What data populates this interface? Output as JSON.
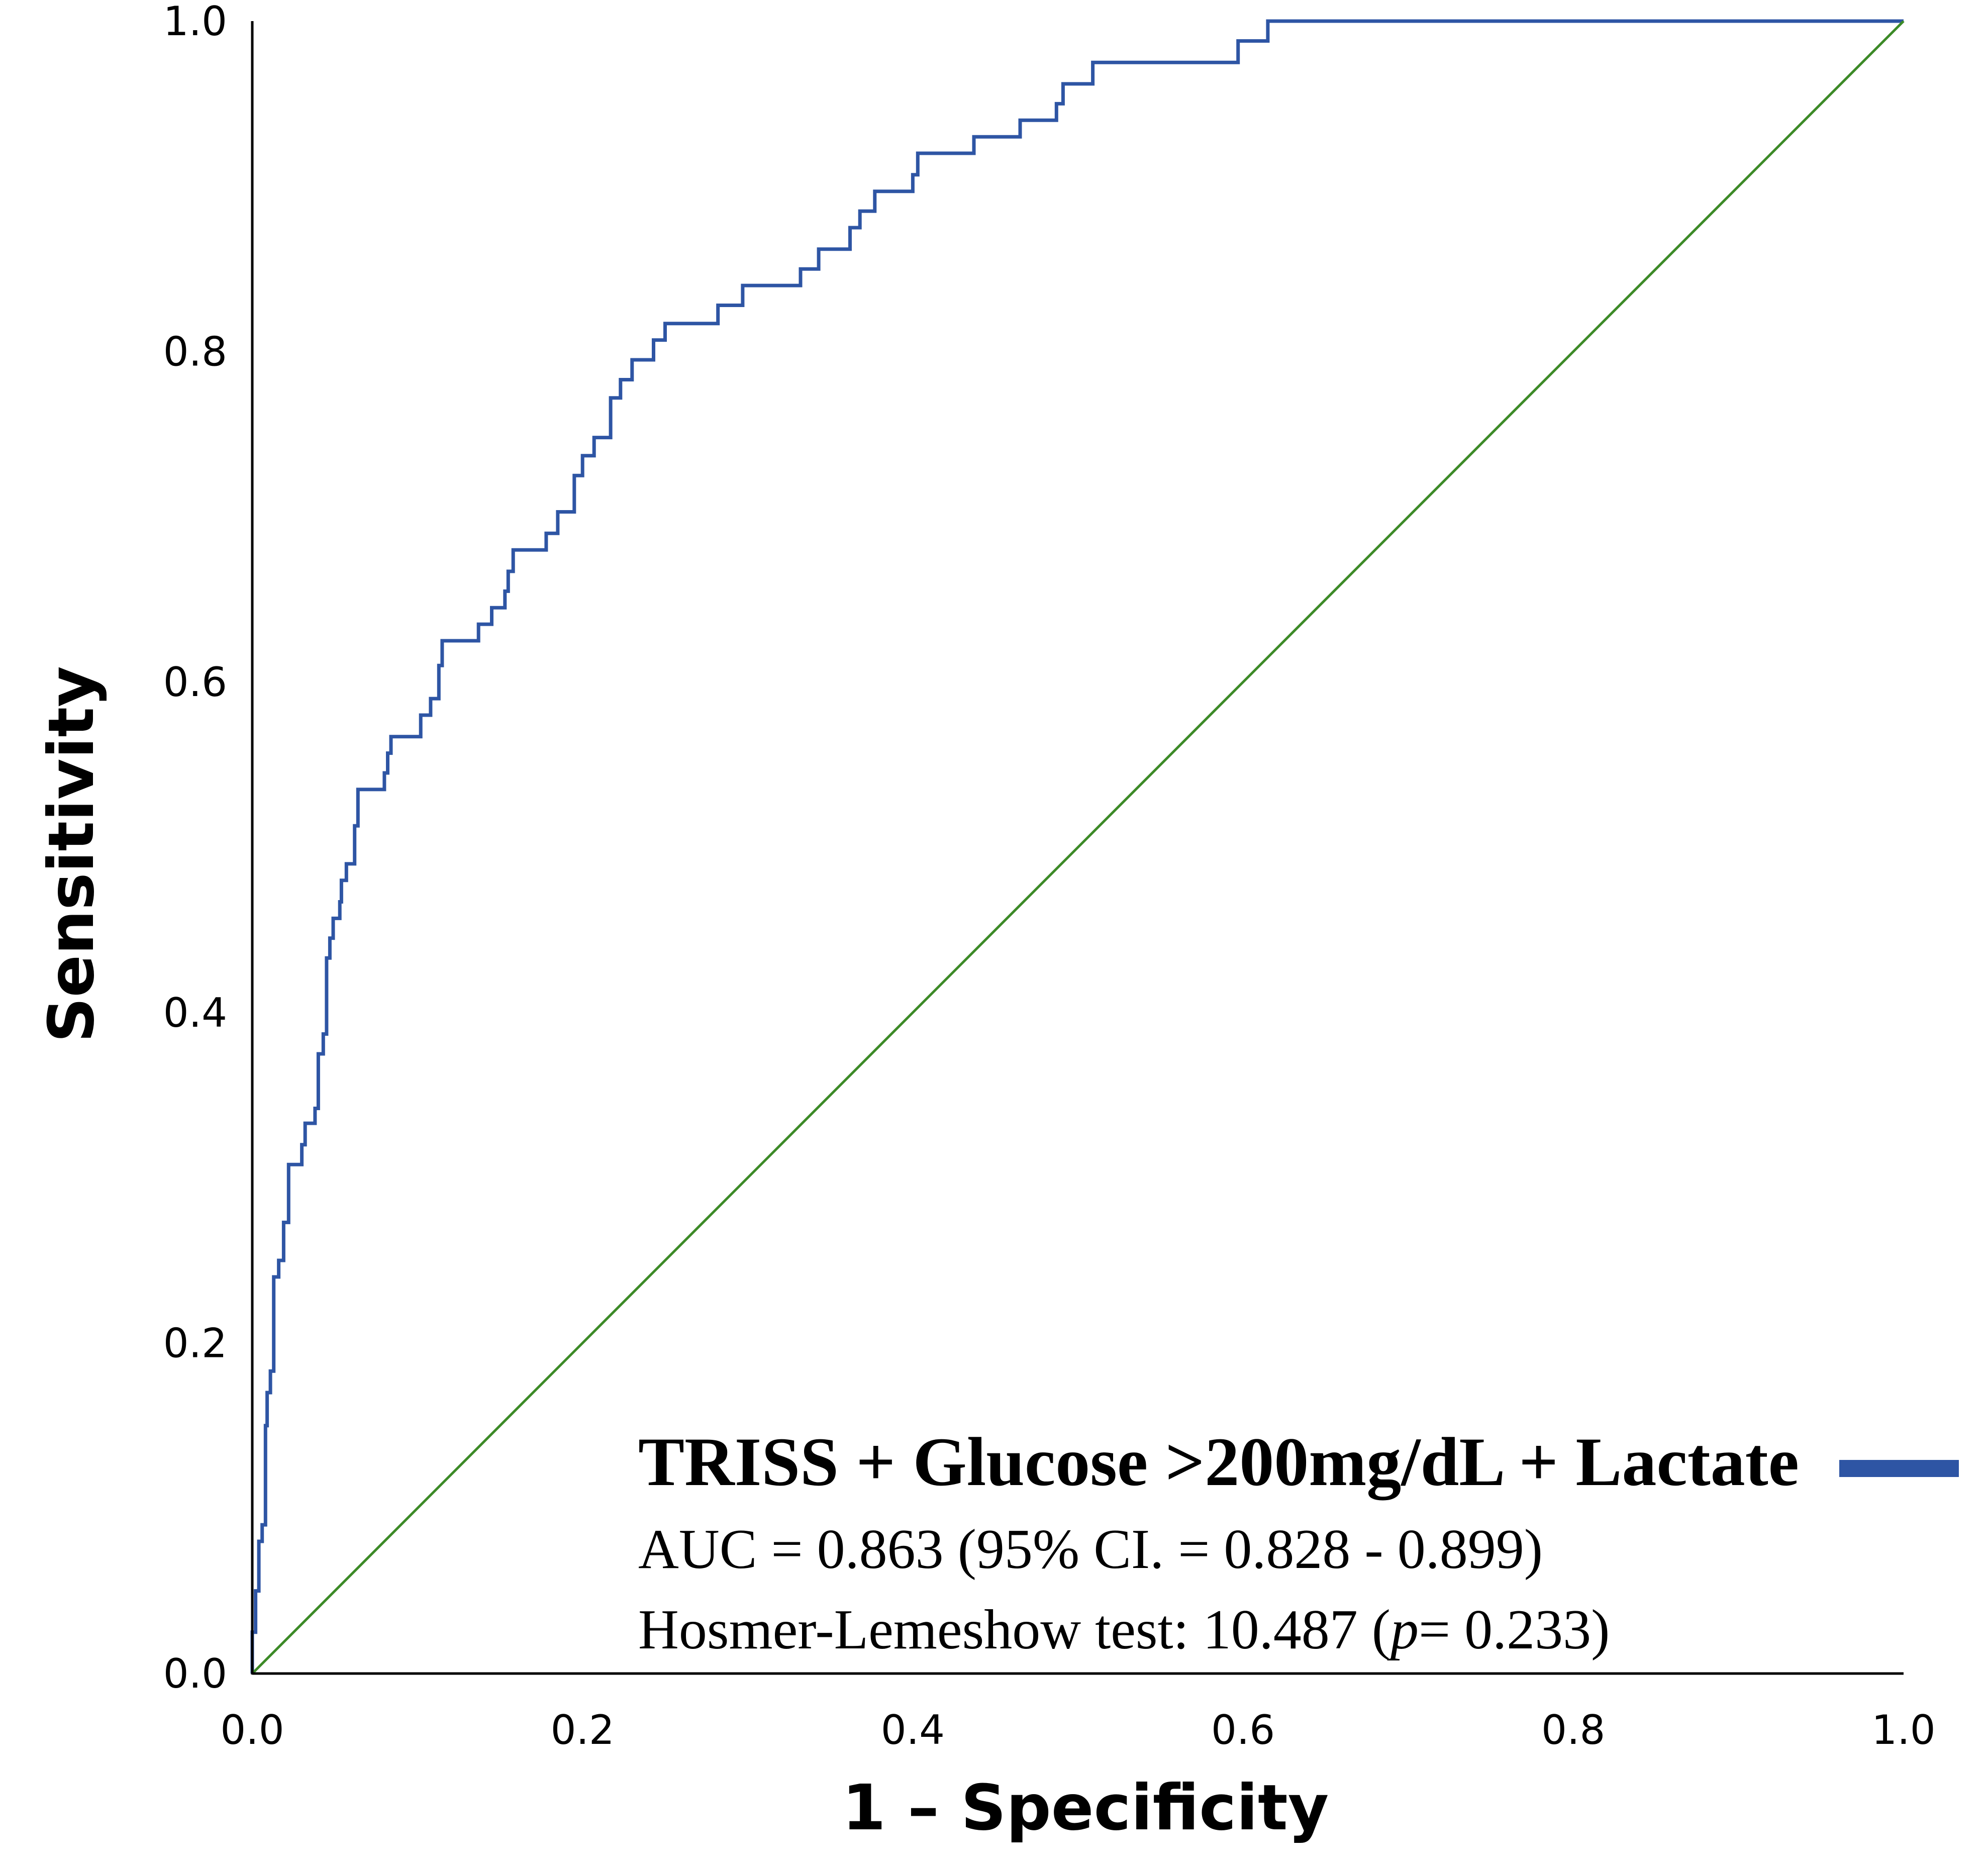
{
  "chart_data": {
    "type": "line",
    "title": "",
    "xlabel": "1 – Specificity",
    "ylabel": "Sensitivity",
    "xlim": [
      0,
      1
    ],
    "ylim": [
      0,
      1
    ],
    "x_ticks": [
      "0.0",
      "0.2",
      "0.4",
      "0.6",
      "0.8",
      "1.0"
    ],
    "y_ticks": [
      "0.0",
      "0.2",
      "0.4",
      "0.6",
      "0.8",
      "1.0"
    ],
    "grid": false,
    "legend": {
      "placement": "bottom-right",
      "title": "TRISS + Glucose >200mg/dL + Lactate",
      "auc_text": "AUC = 0.863 (95% CI. = 0.828 - 0.899)",
      "hl_prefix": "Hosmer-Lemeshow test: 10.487 (",
      "hl_p": "p",
      "hl_suffix": "= 0.233)"
    },
    "colors": {
      "roc": "#2e55a4",
      "reference": "#3c8a27",
      "axes": "#000000"
    },
    "series": [
      {
        "name": "TRISS + Glucose >200mg/dL + Lactate",
        "style": "step",
        "points": [
          [
            0,
            0
          ],
          [
            0,
            0.025
          ],
          [
            0.002,
            0.025
          ],
          [
            0.002,
            0.05
          ],
          [
            0.004,
            0.05
          ],
          [
            0.004,
            0.08
          ],
          [
            0.006,
            0.08
          ],
          [
            0.006,
            0.09
          ],
          [
            0.008,
            0.09
          ],
          [
            0.008,
            0.15
          ],
          [
            0.009,
            0.15
          ],
          [
            0.009,
            0.17
          ],
          [
            0.011,
            0.17
          ],
          [
            0.011,
            0.183
          ],
          [
            0.013,
            0.183
          ],
          [
            0.013,
            0.24
          ],
          [
            0.016,
            0.24
          ],
          [
            0.016,
            0.25
          ],
          [
            0.019,
            0.25
          ],
          [
            0.019,
            0.273
          ],
          [
            0.022,
            0.273
          ],
          [
            0.022,
            0.308
          ],
          [
            0.03,
            0.308
          ],
          [
            0.03,
            0.32
          ],
          [
            0.032,
            0.32
          ],
          [
            0.032,
            0.333
          ],
          [
            0.038,
            0.333
          ],
          [
            0.038,
            0.342
          ],
          [
            0.04,
            0.342
          ],
          [
            0.04,
            0.375
          ],
          [
            0.043,
            0.375
          ],
          [
            0.043,
            0.387
          ],
          [
            0.045,
            0.387
          ],
          [
            0.045,
            0.433
          ],
          [
            0.047,
            0.433
          ],
          [
            0.047,
            0.445
          ],
          [
            0.049,
            0.445
          ],
          [
            0.049,
            0.457
          ],
          [
            0.053,
            0.457
          ],
          [
            0.053,
            0.467
          ],
          [
            0.054,
            0.467
          ],
          [
            0.054,
            0.48
          ],
          [
            0.057,
            0.48
          ],
          [
            0.057,
            0.49
          ],
          [
            0.062,
            0.49
          ],
          [
            0.062,
            0.513
          ],
          [
            0.064,
            0.513
          ],
          [
            0.064,
            0.535
          ],
          [
            0.08,
            0.535
          ],
          [
            0.08,
            0.545
          ],
          [
            0.082,
            0.545
          ],
          [
            0.082,
            0.557
          ],
          [
            0.084,
            0.557
          ],
          [
            0.084,
            0.567
          ],
          [
            0.102,
            0.567
          ],
          [
            0.102,
            0.58
          ],
          [
            0.108,
            0.58
          ],
          [
            0.108,
            0.59
          ],
          [
            0.113,
            0.59
          ],
          [
            0.113,
            0.61
          ],
          [
            0.115,
            0.61
          ],
          [
            0.115,
            0.625
          ],
          [
            0.137,
            0.625
          ],
          [
            0.137,
            0.635
          ],
          [
            0.145,
            0.635
          ],
          [
            0.145,
            0.645
          ],
          [
            0.153,
            0.645
          ],
          [
            0.153,
            0.655
          ],
          [
            0.155,
            0.655
          ],
          [
            0.155,
            0.667
          ],
          [
            0.158,
            0.667
          ],
          [
            0.158,
            0.68
          ],
          [
            0.178,
            0.68
          ],
          [
            0.178,
            0.69
          ],
          [
            0.185,
            0.69
          ],
          [
            0.185,
            0.703
          ],
          [
            0.195,
            0.703
          ],
          [
            0.195,
            0.725
          ],
          [
            0.2,
            0.725
          ],
          [
            0.2,
            0.737
          ],
          [
            0.207,
            0.737
          ],
          [
            0.207,
            0.748
          ],
          [
            0.217,
            0.748
          ],
          [
            0.217,
            0.772
          ],
          [
            0.223,
            0.772
          ],
          [
            0.223,
            0.783
          ],
          [
            0.23,
            0.783
          ],
          [
            0.23,
            0.795
          ],
          [
            0.243,
            0.795
          ],
          [
            0.243,
            0.807
          ],
          [
            0.25,
            0.807
          ],
          [
            0.25,
            0.817
          ],
          [
            0.282,
            0.817
          ],
          [
            0.282,
            0.828
          ],
          [
            0.297,
            0.828
          ],
          [
            0.297,
            0.84
          ],
          [
            0.332,
            0.84
          ],
          [
            0.332,
            0.85
          ],
          [
            0.343,
            0.85
          ],
          [
            0.343,
            0.862
          ],
          [
            0.362,
            0.862
          ],
          [
            0.362,
            0.875
          ],
          [
            0.368,
            0.875
          ],
          [
            0.368,
            0.885
          ],
          [
            0.377,
            0.885
          ],
          [
            0.377,
            0.897
          ],
          [
            0.4,
            0.897
          ],
          [
            0.4,
            0.907
          ],
          [
            0.403,
            0.907
          ],
          [
            0.403,
            0.92
          ],
          [
            0.437,
            0.92
          ],
          [
            0.437,
            0.93
          ],
          [
            0.465,
            0.93
          ],
          [
            0.465,
            0.94
          ],
          [
            0.487,
            0.94
          ],
          [
            0.487,
            0.95
          ],
          [
            0.491,
            0.95
          ],
          [
            0.491,
            0.962
          ],
          [
            0.509,
            0.962
          ],
          [
            0.509,
            0.975
          ],
          [
            0.597,
            0.975
          ],
          [
            0.597,
            0.988
          ],
          [
            0.615,
            0.988
          ],
          [
            0.615,
            1.0
          ],
          [
            1.0,
            1.0
          ]
        ]
      },
      {
        "name": "Reference",
        "style": "line",
        "points": [
          [
            0,
            0
          ],
          [
            1,
            1
          ]
        ]
      }
    ]
  }
}
